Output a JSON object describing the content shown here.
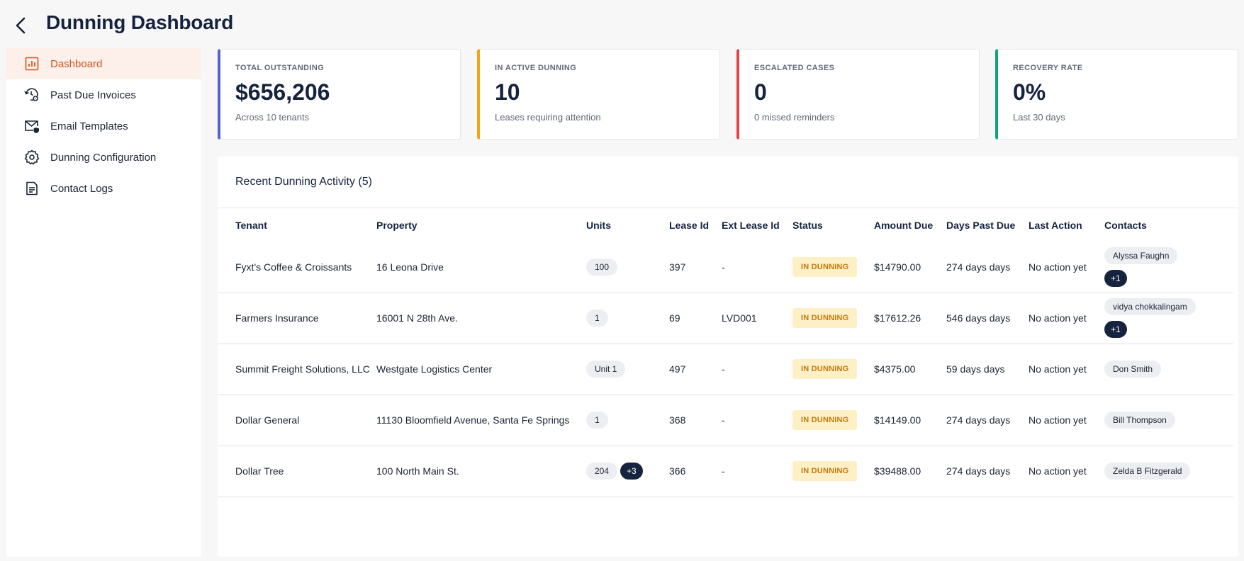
{
  "header": {
    "title": "Dunning Dashboard"
  },
  "sidebar": {
    "items": [
      {
        "label": "Dashboard",
        "icon": "chart-icon",
        "active": true
      },
      {
        "label": "Past Due Invoices",
        "icon": "history-gear-icon"
      },
      {
        "label": "Email Templates",
        "icon": "mail-shield-icon"
      },
      {
        "label": "Dunning Configuration",
        "icon": "gear-icon"
      },
      {
        "label": "Contact Logs",
        "icon": "document-icon"
      }
    ]
  },
  "cards": [
    {
      "label": "TOTAL OUTSTANDING",
      "value": "$656,206",
      "sub": "Across 10 tenants",
      "color": "#5b5fd6"
    },
    {
      "label": "IN ACTIVE DUNNING",
      "value": "10",
      "sub": "Leases requiring attention",
      "color": "#f2a417"
    },
    {
      "label": "ESCALATED CASES",
      "value": "0",
      "sub": "0 missed reminders",
      "color": "#e54545"
    },
    {
      "label": "RECOVERY RATE",
      "value": "0%",
      "sub": "Last 30 days",
      "color": "#14a37f"
    }
  ],
  "activity": {
    "title": "Recent Dunning Activity (5)",
    "columns": [
      "Tenant",
      "Property",
      "Units",
      "Lease Id",
      "Ext Lease Id",
      "Status",
      "Amount Due",
      "Days Past Due",
      "Last Action",
      "Contacts"
    ],
    "rows": [
      {
        "tenant": "Fyxt's Coffee & Croissants",
        "property": "16 Leona Drive",
        "unit": "100",
        "unit_more": "",
        "lease_id": "397",
        "ext_lease_id": "-",
        "status": "IN DUNNING",
        "amount": "$14790.00",
        "days": "274 days days",
        "last_action": "No action yet",
        "contact": "Alyssa Faughn",
        "contact_more": "+1"
      },
      {
        "tenant": "Farmers Insurance",
        "property": "16001 N 28th Ave.",
        "unit": "1",
        "unit_more": "",
        "lease_id": "69",
        "ext_lease_id": "LVD001",
        "status": "IN DUNNING",
        "amount": "$17612.26",
        "days": "546 days days",
        "last_action": "No action yet",
        "contact": "vidya chokkalingam",
        "contact_more": "+1"
      },
      {
        "tenant": "Summit Freight Solutions, LLC",
        "property": "Westgate Logistics Center",
        "unit": "Unit 1",
        "unit_more": "",
        "lease_id": "497",
        "ext_lease_id": "-",
        "status": "IN DUNNING",
        "amount": "$4375.00",
        "days": "59 days days",
        "last_action": "No action yet",
        "contact": "Don Smith",
        "contact_more": ""
      },
      {
        "tenant": "Dollar General",
        "property": "11130 Bloomfield Avenue, Santa Fe Springs",
        "unit": "1",
        "unit_more": "",
        "lease_id": "368",
        "ext_lease_id": "-",
        "status": "IN DUNNING",
        "amount": "$14149.00",
        "days": "274 days days",
        "last_action": "No action yet",
        "contact": "Bill Thompson",
        "contact_more": ""
      },
      {
        "tenant": "Dollar Tree",
        "property": "100 North Main St.",
        "unit": "204",
        "unit_more": "+3",
        "lease_id": "366",
        "ext_lease_id": "-",
        "status": "IN DUNNING",
        "amount": "$39488.00",
        "days": "274 days days",
        "last_action": "No action yet",
        "contact": "Zelda B Fitzgerald",
        "contact_more": ""
      }
    ]
  }
}
